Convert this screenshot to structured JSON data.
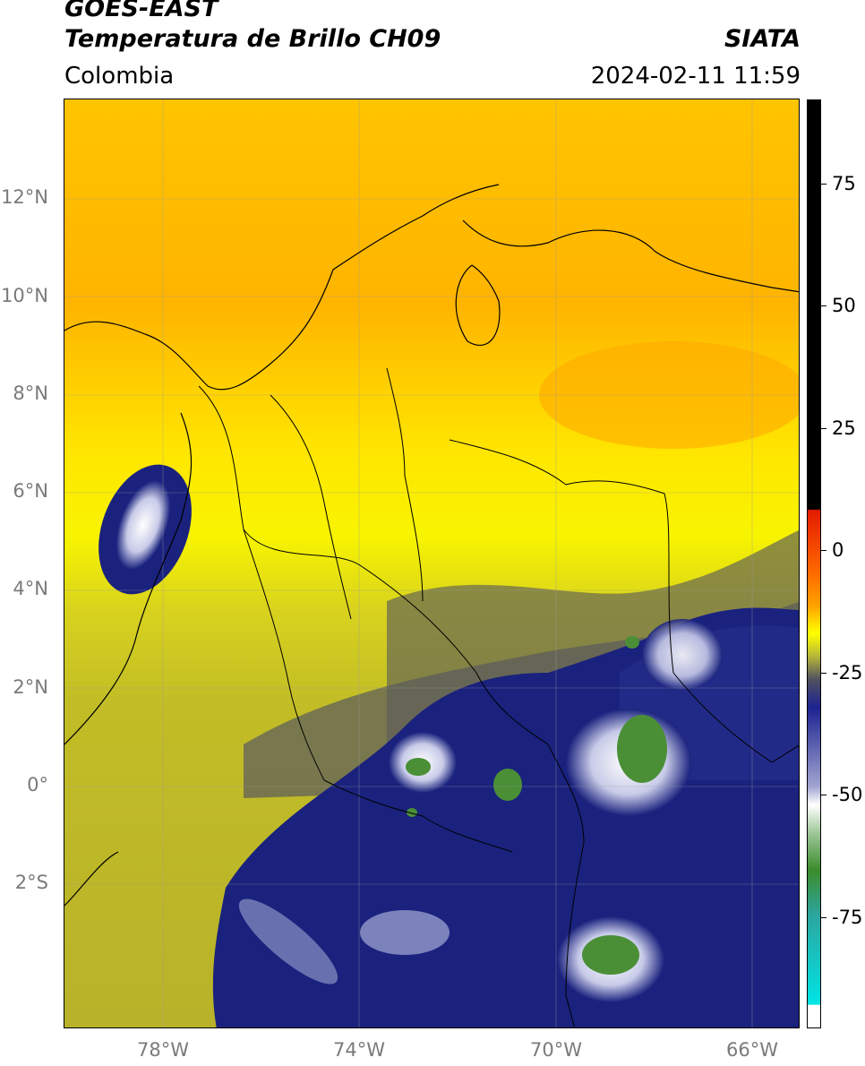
{
  "header": {
    "satellite": "GOES-EAST",
    "product": "Temperatura de Brillo CH09",
    "org": "SIATA",
    "region": "Colombia",
    "datetime": "2024-02-11 11:59"
  },
  "axes": {
    "lat_labels": [
      "12°N",
      "10°N",
      "8°N",
      "6°N",
      "4°N",
      "2°N",
      "0°",
      "2°S"
    ],
    "lon_labels": [
      "78°W",
      "74°W",
      "70°W",
      "66°W"
    ]
  },
  "colorbar": {
    "ticks": [
      "75",
      "50",
      "25",
      "0",
      "-25",
      "-50",
      "-75"
    ],
    "colors": {
      "black": "#000000",
      "red": "#e41a00",
      "orange": "#ffa200",
      "yellow": "#ffff00",
      "olive": "#9f9f3a",
      "gray": "#505060",
      "navy": "#1d2390",
      "white": "#ffffff",
      "green": "#3c8c2c",
      "teal": "#2ca6a0",
      "cyan": "#00e5e5"
    }
  },
  "map_colors": {
    "orange": "#ffb000",
    "yellow": "#ffe400",
    "lightyellow": "#f6f000",
    "olive": "#c2bd26",
    "darkolive": "#7a7a4a",
    "navy": "#1a227e",
    "cloudwhite": "#e6e8f4",
    "cloudgreen": "#4a8f36"
  }
}
